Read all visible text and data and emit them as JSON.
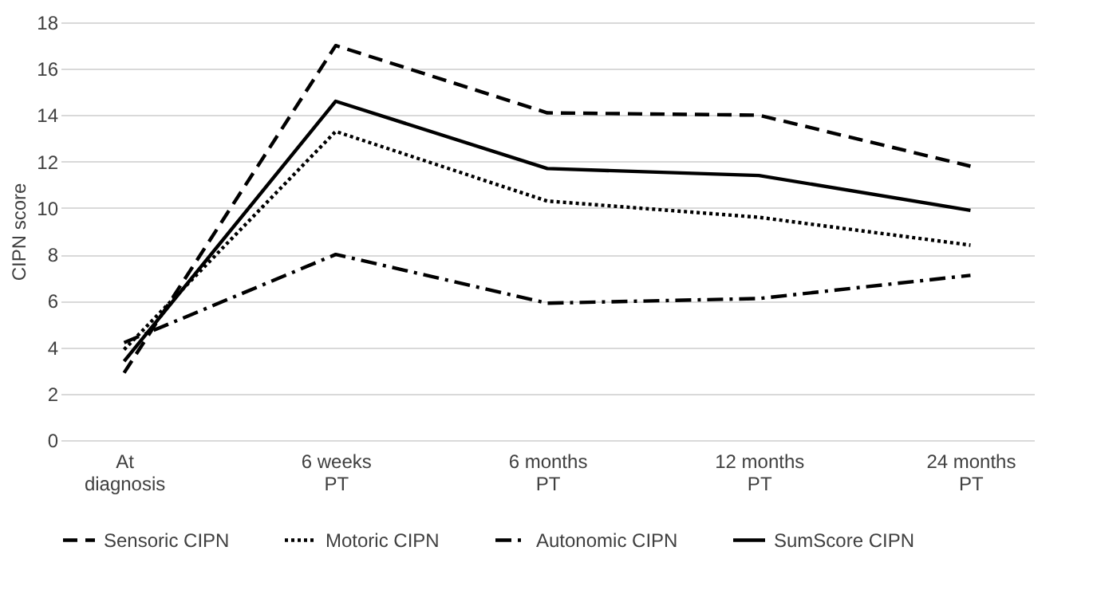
{
  "chart_data": {
    "type": "line",
    "ylabel": "CIPN score",
    "categories": [
      "At diagnosis",
      "6 weeks PT",
      "6 months PT",
      "12 months PT",
      "24 months PT"
    ],
    "ylim": [
      0,
      18
    ],
    "yticks": [
      0,
      2,
      4,
      6,
      8,
      10,
      12,
      14,
      16,
      18
    ],
    "grid": "y",
    "legend": "bottom",
    "series": [
      {
        "name": "Sensoric CIPN",
        "color": "#000000",
        "line_style": "dashed",
        "values": [
          2.9,
          17.0,
          14.1,
          14.0,
          11.8
        ]
      },
      {
        "name": "Motoric CIPN",
        "color": "#000000",
        "line_style": "dotted",
        "values": [
          3.9,
          13.3,
          10.3,
          9.6,
          8.4
        ]
      },
      {
        "name": "Autonomic CIPN",
        "color": "#000000",
        "line_style": "dashdot",
        "values": [
          4.2,
          8.0,
          5.9,
          6.1,
          7.1
        ]
      },
      {
        "name": "SumScore CIPN",
        "color": "#000000",
        "line_style": "solid",
        "values": [
          3.4,
          14.6,
          11.7,
          11.4,
          9.9
        ]
      }
    ]
  }
}
